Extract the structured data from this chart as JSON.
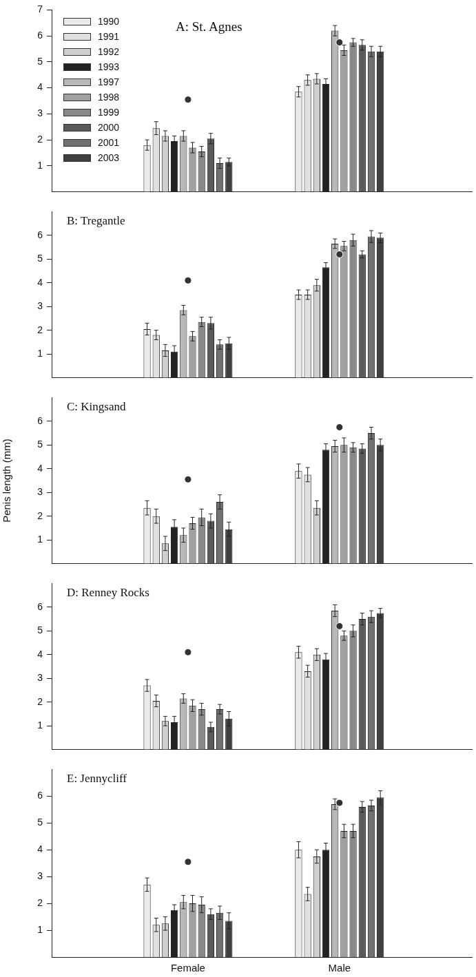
{
  "chart_data": [
    {
      "type": "bar",
      "title": "A: St. Agnes",
      "categories": [
        null,
        null
      ],
      "ylim": [
        0,
        7
      ],
      "yticks": [
        1,
        2,
        3,
        4,
        5,
        6,
        7
      ],
      "tick_labels": "y",
      "legend": "top left",
      "grid": false,
      "marker": "circle",
      "series": [
        {
          "name": "1990",
          "color": "#eaeaea",
          "values": [
            1.8,
            3.85
          ],
          "errors": [
            0.2,
            0.2
          ]
        },
        {
          "name": "1991",
          "color": "#e0e0e0",
          "values": [
            2.45,
            4.3
          ],
          "errors": [
            0.25,
            0.2
          ]
        },
        {
          "name": "1992",
          "color": "#cfcfcf",
          "values": [
            2.15,
            4.35
          ],
          "errors": [
            0.2,
            0.2
          ]
        },
        {
          "name": "1993",
          "color": "#222222",
          "values": [
            1.95,
            4.15
          ],
          "errors": [
            0.2,
            0.2
          ]
        },
        {
          "name": "1997",
          "color": "#b8b8b8",
          "values": [
            2.15,
            6.2
          ],
          "errors": [
            0.2,
            0.2
          ]
        },
        {
          "name": "1998",
          "color": "#a0a0a0",
          "values": [
            1.7,
            5.45
          ],
          "errors": [
            0.2,
            0.2
          ]
        },
        {
          "name": "1999",
          "color": "#888888",
          "values": [
            1.55,
            5.75
          ],
          "errors": [
            0.2,
            0.15
          ]
        },
        {
          "name": "2000",
          "color": "#5a5a5a",
          "values": [
            2.05,
            5.65
          ],
          "errors": [
            0.2,
            0.2
          ]
        },
        {
          "name": "2001",
          "color": "#717171",
          "values": [
            1.1,
            5.4
          ],
          "errors": [
            0.2,
            0.2
          ]
        },
        {
          "name": "2003",
          "color": "#404040",
          "values": [
            1.15,
            5.4
          ],
          "errors": [
            0.15,
            0.2
          ]
        },
        {
          "type": "scatter",
          "color": "#333333",
          "values": [
            3.55,
            5.75
          ]
        }
      ]
    },
    {
      "type": "bar",
      "title": "B: Tregantle",
      "categories": [
        null,
        null
      ],
      "ylim": [
        0,
        7
      ],
      "yticks": [
        1,
        2,
        3,
        4,
        5,
        6
      ],
      "tick_labels": "y",
      "grid": false,
      "marker": "circle",
      "series": [
        {
          "color": "#eaeaea",
          "values": [
            2.05,
            3.5
          ],
          "errors": [
            0.25,
            0.2
          ]
        },
        {
          "color": "#e0e0e0",
          "values": [
            1.8,
            3.5
          ],
          "errors": [
            0.2,
            0.2
          ]
        },
        {
          "color": "#cfcfcf",
          "values": [
            1.15,
            3.9
          ],
          "errors": [
            0.25,
            0.25
          ]
        },
        {
          "color": "#222222",
          "values": [
            1.1,
            4.65
          ],
          "errors": [
            0.25,
            0.2
          ]
        },
        {
          "color": "#b8b8b8",
          "values": [
            2.85,
            5.65
          ],
          "errors": [
            0.2,
            0.2
          ]
        },
        {
          "color": "#a0a0a0",
          "values": [
            1.75,
            5.55
          ],
          "errors": [
            0.2,
            0.2
          ]
        },
        {
          "color": "#888888",
          "values": [
            2.35,
            5.8
          ],
          "errors": [
            0.2,
            0.25
          ]
        },
        {
          "color": "#5a5a5a",
          "values": [
            2.3,
            5.2
          ],
          "errors": [
            0.25,
            0.15
          ]
        },
        {
          "color": "#717171",
          "values": [
            1.4,
            5.95
          ],
          "errors": [
            0.2,
            0.25
          ]
        },
        {
          "color": "#404040",
          "values": [
            1.45,
            5.9
          ],
          "errors": [
            0.25,
            0.2
          ]
        },
        {
          "type": "scatter",
          "color": "#333333",
          "values": [
            4.1,
            5.2
          ]
        }
      ]
    },
    {
      "type": "bar",
      "title": "C: Kingsand",
      "ylabel": "Penis length (mm)",
      "categories": [
        null,
        null
      ],
      "ylim": [
        0,
        7
      ],
      "yticks": [
        1,
        2,
        3,
        4,
        5,
        6
      ],
      "tick_labels": "y",
      "grid": false,
      "marker": "circle",
      "series": [
        {
          "color": "#eaeaea",
          "values": [
            2.35,
            3.9
          ],
          "errors": [
            0.3,
            0.3
          ]
        },
        {
          "color": "#e0e0e0",
          "values": [
            2.0,
            3.75
          ],
          "errors": [
            0.3,
            0.3
          ]
        },
        {
          "color": "#cfcfcf",
          "values": [
            0.85,
            2.35
          ],
          "errors": [
            0.3,
            0.3
          ]
        },
        {
          "color": "#222222",
          "values": [
            1.55,
            4.8
          ],
          "errors": [
            0.3,
            0.25
          ]
        },
        {
          "color": "#b8b8b8",
          "values": [
            1.2,
            4.95
          ],
          "errors": [
            0.3,
            0.25
          ]
        },
        {
          "color": "#a0a0a0",
          "values": [
            1.7,
            5.0
          ],
          "errors": [
            0.25,
            0.3
          ]
        },
        {
          "color": "#888888",
          "values": [
            1.95,
            4.9
          ],
          "errors": [
            0.35,
            0.2
          ]
        },
        {
          "color": "#5a5a5a",
          "values": [
            1.8,
            4.85
          ],
          "errors": [
            0.3,
            0.2
          ]
        },
        {
          "color": "#717171",
          "values": [
            2.6,
            5.5
          ],
          "errors": [
            0.3,
            0.25
          ]
        },
        {
          "color": "#404040",
          "values": [
            1.45,
            5.0
          ],
          "errors": [
            0.3,
            0.25
          ]
        },
        {
          "type": "scatter",
          "color": "#333333",
          "values": [
            3.55,
            5.75
          ]
        }
      ]
    },
    {
      "type": "bar",
      "title": "D: Renney Rocks",
      "categories": [
        null,
        null
      ],
      "ylim": [
        0,
        7
      ],
      "yticks": [
        1,
        2,
        3,
        4,
        5,
        6
      ],
      "tick_labels": "y",
      "grid": false,
      "marker": "circle",
      "series": [
        {
          "color": "#eaeaea",
          "values": [
            2.7,
            4.1
          ],
          "errors": [
            0.25,
            0.25
          ]
        },
        {
          "color": "#e0e0e0",
          "values": [
            2.05,
            3.3
          ],
          "errors": [
            0.25,
            0.25
          ]
        },
        {
          "color": "#cfcfcf",
          "values": [
            1.2,
            4.0
          ],
          "errors": [
            0.2,
            0.25
          ]
        },
        {
          "color": "#222222",
          "values": [
            1.15,
            3.8
          ],
          "errors": [
            0.25,
            0.25
          ]
        },
        {
          "color": "#b8b8b8",
          "values": [
            2.15,
            5.85
          ],
          "errors": [
            0.2,
            0.25
          ]
        },
        {
          "color": "#a0a0a0",
          "values": [
            1.85,
            4.8
          ],
          "errors": [
            0.25,
            0.2
          ]
        },
        {
          "color": "#888888",
          "values": [
            1.7,
            5.0
          ],
          "errors": [
            0.25,
            0.25
          ]
        },
        {
          "color": "#5a5a5a",
          "values": [
            0.95,
            5.5
          ],
          "errors": [
            0.2,
            0.25
          ]
        },
        {
          "color": "#717171",
          "values": [
            1.7,
            5.6
          ],
          "errors": [
            0.2,
            0.25
          ]
        },
        {
          "color": "#404040",
          "values": [
            1.3,
            5.75
          ],
          "errors": [
            0.3,
            0.2
          ]
        },
        {
          "type": "scatter",
          "color": "#333333",
          "values": [
            4.1,
            5.2
          ]
        }
      ]
    },
    {
      "type": "bar",
      "title": "E: Jennycliff",
      "categories": [
        "Female",
        "Male"
      ],
      "ylim": [
        0,
        7
      ],
      "yticks": [
        1,
        2,
        3,
        4,
        5,
        6
      ],
      "grid": false,
      "marker": "circle",
      "series": [
        {
          "color": "#eaeaea",
          "values": [
            2.7,
            4.0
          ],
          "errors": [
            0.25,
            0.3
          ]
        },
        {
          "color": "#e0e0e0",
          "values": [
            1.2,
            2.35
          ],
          "errors": [
            0.25,
            0.25
          ]
        },
        {
          "color": "#cfcfcf",
          "values": [
            1.25,
            3.75
          ],
          "errors": [
            0.25,
            0.25
          ]
        },
        {
          "color": "#222222",
          "values": [
            1.75,
            4.0
          ],
          "errors": [
            0.2,
            0.25
          ]
        },
        {
          "color": "#b8b8b8",
          "values": [
            2.05,
            5.7
          ],
          "errors": [
            0.25,
            0.2
          ]
        },
        {
          "color": "#a0a0a0",
          "values": [
            2.0,
            4.7
          ],
          "errors": [
            0.3,
            0.25
          ]
        },
        {
          "color": "#888888",
          "values": [
            1.95,
            4.7
          ],
          "errors": [
            0.3,
            0.25
          ]
        },
        {
          "color": "#5a5a5a",
          "values": [
            1.6,
            5.6
          ],
          "errors": [
            0.2,
            0.2
          ]
        },
        {
          "color": "#717171",
          "values": [
            1.65,
            5.65
          ],
          "errors": [
            0.25,
            0.2
          ]
        },
        {
          "color": "#404040",
          "values": [
            1.35,
            5.95
          ],
          "errors": [
            0.3,
            0.25
          ]
        },
        {
          "type": "scatter",
          "color": "#333333",
          "values": [
            3.55,
            5.75
          ]
        }
      ]
    }
  ]
}
